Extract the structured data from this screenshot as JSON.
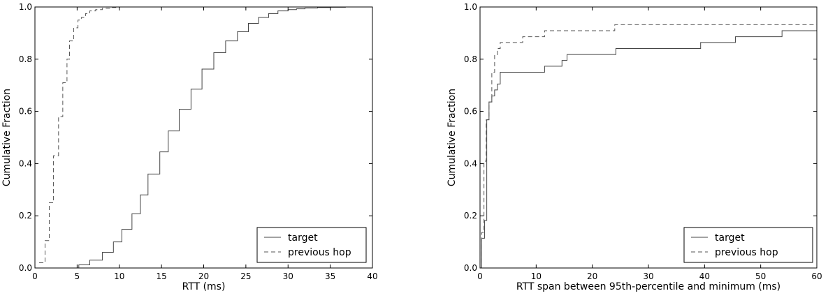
{
  "chart_data": [
    {
      "type": "line",
      "step": true,
      "title": "",
      "xlabel": "RTT (ms)",
      "ylabel": "Cumulative Fraction",
      "xlim": [
        0,
        40
      ],
      "ylim": [
        0,
        1.0
      ],
      "xticks": [
        0,
        5,
        10,
        15,
        20,
        25,
        30,
        35,
        40
      ],
      "xtick_labels": [
        "0",
        "5",
        "10",
        "15",
        "20",
        "25",
        "30",
        "35",
        "40"
      ],
      "yticks": [
        0.0,
        0.2,
        0.4,
        0.6,
        0.8,
        1.0
      ],
      "ytick_labels": [
        "0.0",
        "0.2",
        "0.4",
        "0.6",
        "0.8",
        "1.0"
      ],
      "grid": false,
      "legend_position": "bottom-right",
      "series": [
        {
          "name": "target",
          "style": "solid",
          "color": "#444444",
          "x": [
            0,
            5,
            5.2,
            6.5,
            8,
            9.3,
            10.3,
            11.5,
            12.5,
            13.4,
            14.8,
            15.8,
            17.1,
            18.5,
            19.8,
            21.2,
            22.6,
            24,
            25.3,
            26.5,
            27.7,
            28.8,
            30,
            31,
            32,
            33.5,
            35,
            36.8,
            40
          ],
          "y": [
            0.0,
            0.0,
            0.012,
            0.03,
            0.06,
            0.1,
            0.148,
            0.208,
            0.28,
            0.36,
            0.445,
            0.525,
            0.608,
            0.685,
            0.762,
            0.825,
            0.87,
            0.905,
            0.937,
            0.96,
            0.975,
            0.985,
            0.99,
            0.993,
            0.996,
            0.998,
            0.999,
            1.0,
            1.0
          ]
        },
        {
          "name": "previous hop",
          "style": "dashed",
          "color": "#555555",
          "x": [
            0.5,
            1.2,
            1.7,
            2.2,
            2.8,
            3.3,
            3.8,
            4.1,
            4.6,
            5.1,
            5.5,
            6.0,
            6.5,
            7.2,
            8.0,
            9.0,
            10.0,
            12.0,
            40
          ],
          "y": [
            0.02,
            0.105,
            0.25,
            0.43,
            0.58,
            0.71,
            0.8,
            0.87,
            0.92,
            0.95,
            0.96,
            0.975,
            0.985,
            0.99,
            0.995,
            0.998,
            1.0,
            1.0,
            1.0
          ]
        }
      ]
    },
    {
      "type": "line",
      "step": true,
      "title": "",
      "xlabel": "RTT span between 95th-percentile and minimum (ms)",
      "ylabel": "Cumulative Fraction",
      "xlim": [
        0,
        60
      ],
      "ylim": [
        0,
        1.0
      ],
      "xticks": [
        0,
        10,
        20,
        30,
        40,
        50,
        60
      ],
      "xtick_labels": [
        "0",
        "10",
        "20",
        "30",
        "40",
        "50",
        "60"
      ],
      "yticks": [
        0.0,
        0.2,
        0.4,
        0.6,
        0.8,
        1.0
      ],
      "ytick_labels": [
        "0.0",
        "0.2",
        "0.4",
        "0.6",
        "0.8",
        "1.0"
      ],
      "grid": false,
      "legend_position": "bottom-right",
      "series": [
        {
          "name": "target",
          "style": "solid",
          "color": "#444444",
          "x": [
            0,
            0.3,
            0.8,
            1.2,
            1.6,
            2.1,
            2.6,
            3.1,
            3.6,
            11.5,
            14.6,
            15.5,
            24.2,
            39.3,
            45.5,
            53.8,
            60
          ],
          "y": [
            0.0,
            0.114,
            0.182,
            0.568,
            0.636,
            0.659,
            0.682,
            0.705,
            0.75,
            0.773,
            0.795,
            0.818,
            0.841,
            0.864,
            0.886,
            0.909,
            0.932
          ]
        },
        {
          "name": "previous hop",
          "style": "dashed",
          "color": "#555555",
          "x": [
            0,
            0.3,
            0.7,
            1.1,
            1.6,
            2.1,
            2.6,
            3.1,
            3.6,
            4.1,
            4.6,
            7.6,
            11.5,
            24.0,
            60
          ],
          "y": [
            0.0,
            0.136,
            0.409,
            0.568,
            0.636,
            0.75,
            0.818,
            0.841,
            0.864,
            0.864,
            0.864,
            0.886,
            0.909,
            0.932,
            0.932
          ]
        }
      ]
    }
  ]
}
